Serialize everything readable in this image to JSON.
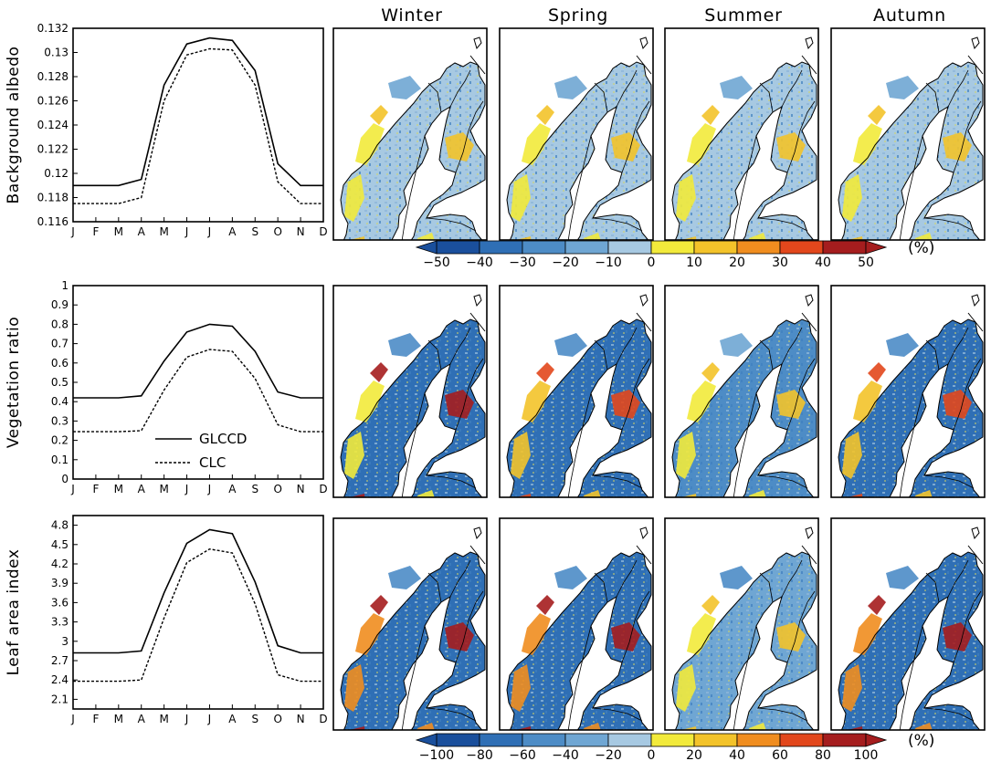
{
  "colors": {
    "scale": [
      "#1a4f9c",
      "#2f6fb5",
      "#4d8cc6",
      "#6fa6d3",
      "#a7c9e2",
      "#f2ea3b",
      "#f3c32a",
      "#f08d1f",
      "#e2471c",
      "#a51d1e"
    ],
    "sea": "#ffffff",
    "land_outline": "#000000"
  },
  "seasons": [
    "Winter",
    "Spring",
    "Summer",
    "Autumn"
  ],
  "months": [
    "J",
    "F",
    "M",
    "A",
    "M",
    "J",
    "J",
    "A",
    "S",
    "O",
    "N",
    "D"
  ],
  "legend": {
    "solid": "GLCCD",
    "dashed": "CLC"
  },
  "colorbars": [
    {
      "labels": [
        "−50",
        "−40",
        "−30",
        "−20",
        "−10",
        "0",
        "10",
        "20",
        "30",
        "40",
        "50"
      ],
      "unit": "(%)"
    },
    {
      "labels": [
        "−100",
        "−80",
        "−60",
        "−40",
        "−20",
        "0",
        "20",
        "40",
        "60",
        "80",
        "100"
      ],
      "unit": "(%)"
    }
  ],
  "chart_data": [
    {
      "type": "line",
      "ylabel": "Background albedo",
      "ylim": [
        0.116,
        0.132
      ],
      "yticks": [
        "0.116",
        "0.118",
        "0.12",
        "0.122",
        "0.124",
        "0.126",
        "0.128",
        "0.13",
        "0.132"
      ],
      "ytick_values": [
        0.116,
        0.118,
        0.12,
        0.122,
        0.124,
        0.126,
        0.128,
        0.13,
        0.132
      ],
      "series": [
        {
          "name": "GLCCD",
          "values": [
            0.119,
            0.119,
            0.119,
            0.1195,
            0.1273,
            0.1307,
            0.1312,
            0.131,
            0.1285,
            0.1208,
            0.119,
            0.119
          ]
        },
        {
          "name": "CLC",
          "values": [
            0.1175,
            0.1175,
            0.1175,
            0.118,
            0.126,
            0.1298,
            0.1303,
            0.1302,
            0.1273,
            0.1193,
            0.1175,
            0.1175
          ]
        }
      ]
    },
    {
      "type": "line",
      "ylabel": "Vegetation ratio",
      "ylim": [
        0,
        1
      ],
      "yticks": [
        "0",
        "0.1",
        "0.2",
        "0.3",
        "0.4",
        "0.5",
        "0.6",
        "0.7",
        "0.8",
        "0.9",
        "1"
      ],
      "ytick_values": [
        0,
        0.1,
        0.2,
        0.3,
        0.4,
        0.5,
        0.6,
        0.7,
        0.8,
        0.9,
        1
      ],
      "series": [
        {
          "name": "GLCCD",
          "values": [
            0.42,
            0.42,
            0.42,
            0.43,
            0.61,
            0.76,
            0.8,
            0.79,
            0.66,
            0.45,
            0.42,
            0.42
          ]
        },
        {
          "name": "CLC",
          "values": [
            0.245,
            0.245,
            0.245,
            0.25,
            0.46,
            0.63,
            0.67,
            0.66,
            0.52,
            0.28,
            0.245,
            0.245
          ]
        }
      ]
    },
    {
      "type": "line",
      "ylabel": "Leaf area index",
      "ylim": [
        1.95,
        4.95
      ],
      "yticks": [
        "2.1",
        "2.4",
        "2.7",
        "3",
        "3.3",
        "3.6",
        "3.9",
        "4.2",
        "4.5",
        "4.8"
      ],
      "ytick_values": [
        2.1,
        2.4,
        2.7,
        3.0,
        3.3,
        3.6,
        3.9,
        4.2,
        4.5,
        4.8
      ],
      "series": [
        {
          "name": "GLCCD",
          "values": [
            2.82,
            2.82,
            2.82,
            2.85,
            3.75,
            4.52,
            4.73,
            4.67,
            3.92,
            2.93,
            2.82,
            2.82
          ]
        },
        {
          "name": "CLC",
          "values": [
            2.38,
            2.38,
            2.38,
            2.4,
            3.36,
            4.22,
            4.43,
            4.37,
            3.58,
            2.48,
            2.38,
            2.38
          ]
        }
      ]
    }
  ]
}
